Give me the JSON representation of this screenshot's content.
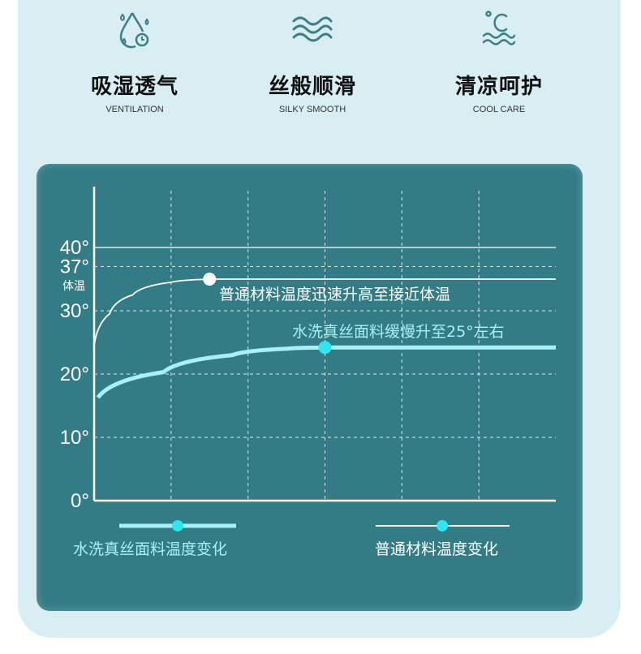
{
  "features": [
    {
      "icon": "water-drop-clock-icon",
      "title": "吸湿透气",
      "subtitle": "VENTILATION"
    },
    {
      "icon": "waves-icon",
      "title": "丝般顺滑",
      "subtitle": "SILKY SMOOTH"
    },
    {
      "icon": "celsius-waves-icon",
      "title": "清凉呵护",
      "subtitle": "COOL CARE"
    }
  ],
  "colors": {
    "page_bg": "#d9eef3",
    "panel": "#337c85",
    "icon": "#3d7f88",
    "silk": "#a8f0f5",
    "silk_dot": "#2ee6f2",
    "normal": "#ffffff"
  },
  "chart_data": {
    "type": "line",
    "ylim": [
      0,
      40
    ],
    "xlim": [
      0,
      6
    ],
    "grid": true,
    "y_ticks": [
      {
        "value": 0,
        "label": "0°"
      },
      {
        "value": 10,
        "label": "10°"
      },
      {
        "value": 20,
        "label": "20°"
      },
      {
        "value": 30,
        "label": "30°"
      },
      {
        "value": 37,
        "label": "37°"
      },
      {
        "value": 40,
        "label": "40°"
      }
    ],
    "body_temp_label": "体温",
    "series": [
      {
        "name": "普通材料温度变化",
        "color": "#ffffff",
        "points": [
          [
            0,
            24.5
          ],
          [
            0.2,
            29.5
          ],
          [
            0.5,
            32.5
          ],
          [
            1.0,
            34.5
          ],
          [
            1.5,
            35
          ],
          [
            6,
            35
          ]
        ],
        "marker": [
          1.5,
          35
        ],
        "annotation": "普通材料温度迅速升高至接近体温"
      },
      {
        "name": "水洗真丝面料温度变化",
        "color": "#a8f0f5",
        "points": [
          [
            0.05,
            16.3
          ],
          [
            0.9,
            20.3
          ],
          [
            1.8,
            23
          ],
          [
            2.5,
            24
          ],
          [
            3,
            24.2
          ],
          [
            6,
            24.2
          ]
        ],
        "marker": [
          3,
          24.2
        ],
        "annotation": "水洗真丝面料缓慢升至25°左右"
      }
    ],
    "legend": {
      "placement": "bottom"
    }
  }
}
